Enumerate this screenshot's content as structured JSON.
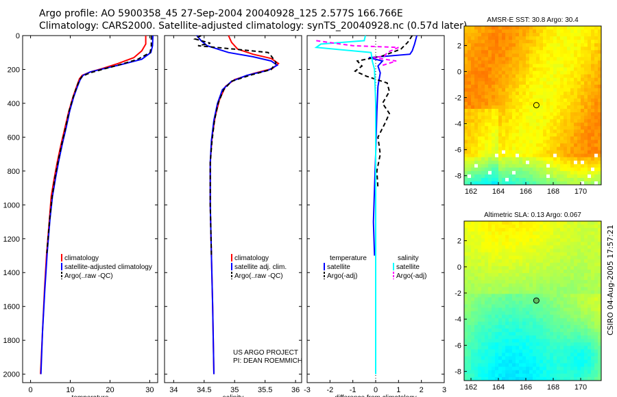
{
  "header": {
    "title_line1": "Argo profile: AO 5900358_45 27-Sep-2004 20040928_125 2.577S 166.766E",
    "title_line2": "Climatology: CARS2000. Satellite-adjusted climatology: synTS_20040928.nc (0.57d later)"
  },
  "side_label": "CSIRO 04-Aug-2005 17:57:21",
  "colors": {
    "red": "#ff0000",
    "blue": "#0000ff",
    "black": "#000000",
    "cyan": "#00ffff",
    "magenta": "#ff00ff"
  },
  "chart_data": [
    {
      "id": "temp",
      "type": "line",
      "xlabel": "temperature",
      "ylabel": "",
      "xlim": [
        -2,
        32
      ],
      "ylim": [
        2050,
        0
      ],
      "xticks": [
        0,
        10,
        20,
        30
      ],
      "yticks": [
        0,
        200,
        400,
        600,
        800,
        1000,
        1200,
        1400,
        1600,
        1800,
        2000
      ],
      "legend": [
        "climatology",
        "satellite-adjusted climatology",
        "Argo(..raw -QC)"
      ],
      "series": [
        {
          "name": "climatology",
          "color": "red",
          "dash": "",
          "points": [
            [
              29,
              0
            ],
            [
              29,
              50
            ],
            [
              28,
              90
            ],
            [
              26,
              130
            ],
            [
              22,
              165
            ],
            [
              18,
              195
            ],
            [
              15,
              215
            ],
            [
              13,
              235
            ],
            [
              12.3,
              255
            ],
            [
              11.6,
              300
            ],
            [
              10.7,
              360
            ],
            [
              9.6,
              450
            ],
            [
              8.6,
              550
            ],
            [
              7.6,
              650
            ],
            [
              6.7,
              750
            ],
            [
              5.9,
              850
            ],
            [
              5.2,
              950
            ],
            [
              4.7,
              1100
            ],
            [
              4,
              1300
            ],
            [
              3.5,
              1500
            ],
            [
              3,
              1750
            ],
            [
              2.5,
              2000
            ]
          ]
        },
        {
          "name": "satellite-adjusted climatology",
          "color": "blue",
          "dash": "",
          "points": [
            [
              30.8,
              0
            ],
            [
              30.7,
              60
            ],
            [
              30.3,
              100
            ],
            [
              28,
              140
            ],
            [
              23,
              170
            ],
            [
              18.5,
              195
            ],
            [
              15,
              215
            ],
            [
              13.2,
              235
            ],
            [
              12.5,
              260
            ],
            [
              11.8,
              300
            ],
            [
              10.9,
              360
            ],
            [
              9.9,
              440
            ],
            [
              9,
              540
            ],
            [
              8,
              640
            ],
            [
              7.1,
              740
            ],
            [
              6.3,
              840
            ],
            [
              5.5,
              950
            ],
            [
              4.9,
              1080
            ],
            [
              4.2,
              1280
            ],
            [
              3.6,
              1500
            ],
            [
              3,
              1750
            ],
            [
              2.6,
              2000
            ]
          ]
        },
        {
          "name": "Argo(..raw -QC)",
          "color": "black",
          "dash": "6,4",
          "points": [
            [
              30.4,
              0
            ],
            [
              30.4,
              60
            ],
            [
              30.1,
              100
            ],
            [
              27,
              140
            ],
            [
              22,
              175
            ],
            [
              18,
              200
            ],
            [
              15,
              220
            ],
            [
              13,
              240
            ],
            [
              12.3,
              262
            ],
            [
              11.6,
              305
            ],
            [
              10.7,
              365
            ],
            [
              9.7,
              445
            ],
            [
              8.8,
              545
            ],
            [
              7.8,
              645
            ],
            [
              6.9,
              745
            ],
            [
              6.1,
              845
            ],
            [
              5.4,
              955
            ],
            [
              4.8,
              1085
            ],
            [
              4.1,
              1285
            ]
          ]
        }
      ]
    },
    {
      "id": "sal",
      "type": "line",
      "xlabel": "salinity",
      "ylabel": "",
      "xlim": [
        33.85,
        36.1
      ],
      "ylim": [
        2050,
        0
      ],
      "xticks": [
        34,
        34.5,
        35,
        35.5,
        36
      ],
      "yticks": [
        0,
        200,
        400,
        600,
        800,
        1000,
        1200,
        1400,
        1600,
        1800,
        2000
      ],
      "legend": [
        "climatology",
        "satellite adj. clim.",
        "Argo(..raw -QC)"
      ],
      "annotation": [
        "US ARGO PROJECT",
        "PI: DEAN ROEMMICH"
      ],
      "series": [
        {
          "name": "climatology",
          "color": "red",
          "dash": "",
          "points": [
            [
              34.9,
              0
            ],
            [
              34.95,
              40
            ],
            [
              35.05,
              80
            ],
            [
              35.3,
              110
            ],
            [
              35.6,
              135
            ],
            [
              35.72,
              165
            ],
            [
              35.62,
              195
            ],
            [
              35.3,
              225
            ],
            [
              35.0,
              260
            ],
            [
              34.85,
              300
            ],
            [
              34.75,
              380
            ],
            [
              34.68,
              480
            ],
            [
              34.63,
              600
            ],
            [
              34.6,
              750
            ],
            [
              34.6,
              1000
            ],
            [
              34.62,
              1300
            ],
            [
              34.64,
              1600
            ],
            [
              34.66,
              2000
            ]
          ]
        },
        {
          "name": "satellite adj. clim.",
          "color": "blue",
          "dash": "",
          "points": [
            [
              34.38,
              0
            ],
            [
              34.45,
              30
            ],
            [
              34.55,
              60
            ],
            [
              34.9,
              100
            ],
            [
              35.3,
              125
            ],
            [
              35.6,
              150
            ],
            [
              35.7,
              175
            ],
            [
              35.55,
              205
            ],
            [
              35.2,
              235
            ],
            [
              34.95,
              270
            ],
            [
              34.8,
              320
            ],
            [
              34.72,
              400
            ],
            [
              34.66,
              500
            ],
            [
              34.62,
              620
            ],
            [
              34.6,
              750
            ],
            [
              34.6,
              1000
            ],
            [
              34.62,
              1300
            ],
            [
              34.64,
              1600
            ],
            [
              34.66,
              2000
            ]
          ]
        },
        {
          "name": "Argo(..raw -QC)",
          "color": "black",
          "dash": "6,4",
          "points": [
            [
              34.45,
              0
            ],
            [
              34.35,
              20
            ],
            [
              34.6,
              45
            ],
            [
              34.4,
              60
            ],
            [
              35.0,
              80
            ],
            [
              35.55,
              100
            ],
            [
              35.6,
              120
            ],
            [
              35.68,
              160
            ],
            [
              35.6,
              200
            ],
            [
              35.25,
              235
            ],
            [
              34.95,
              270
            ],
            [
              34.82,
              320
            ],
            [
              34.73,
              400
            ],
            [
              34.67,
              500
            ],
            [
              34.63,
              620
            ],
            [
              34.6,
              750
            ],
            [
              34.6,
              1000
            ],
            [
              34.62,
              1300
            ]
          ]
        }
      ]
    },
    {
      "id": "diff",
      "type": "line",
      "xlabel": "difference from climatology",
      "ylabel": "",
      "xlim": [
        -3,
        3
      ],
      "ylim": [
        2050,
        0
      ],
      "xticks": [
        -3,
        -2,
        -1,
        0,
        1,
        2,
        3
      ],
      "yticks": [
        0,
        200,
        400,
        600,
        800,
        1000,
        1200,
        1400,
        1600,
        1800,
        2000
      ],
      "legend_left": [
        "temperature",
        "satellite",
        "Argo(-adj)"
      ],
      "legend_right": [
        "salinity",
        "satellite",
        "Argo(-adj)"
      ],
      "series": [
        {
          "name": "temperature satellite",
          "color": "blue",
          "dash": "",
          "points": [
            [
              1.8,
              0
            ],
            [
              1.7,
              50
            ],
            [
              1.6,
              90
            ],
            [
              1.5,
              110
            ],
            [
              -0.3,
              130
            ],
            [
              0.3,
              150
            ],
            [
              0.1,
              180
            ],
            [
              0.2,
              220
            ],
            [
              0.1,
              300
            ],
            [
              0.05,
              450
            ],
            [
              0.0,
              700
            ],
            [
              -0.05,
              900
            ],
            [
              -0.1,
              1100
            ],
            [
              -0.05,
              1300
            ]
          ]
        },
        {
          "name": "temperature Argo(-adj)",
          "color": "black",
          "dash": "6,4",
          "points": [
            [
              1.6,
              0
            ],
            [
              1.4,
              40
            ],
            [
              1.1,
              80
            ],
            [
              0.3,
              120
            ],
            [
              -0.8,
              150
            ],
            [
              -0.6,
              180
            ],
            [
              -0.9,
              210
            ],
            [
              -0.4,
              240
            ],
            [
              0.5,
              280
            ],
            [
              0.6,
              330
            ],
            [
              0.3,
              400
            ],
            [
              0.6,
              460
            ],
            [
              0.4,
              520
            ],
            [
              0.1,
              600
            ],
            [
              0.2,
              700
            ],
            [
              0.05,
              800
            ],
            [
              0.1,
              900
            ]
          ]
        },
        {
          "name": "salinity satellite",
          "color": "cyan",
          "dash": "",
          "points": [
            [
              -0.45,
              0
            ],
            [
              -0.5,
              30
            ],
            [
              -2.4,
              50
            ],
            [
              -2.6,
              70
            ],
            [
              -0.2,
              100
            ],
            [
              -0.15,
              150
            ],
            [
              -0.05,
              200
            ],
            [
              0.0,
              400
            ],
            [
              0.0,
              800
            ],
            [
              0.0,
              2000
            ]
          ]
        },
        {
          "name": "salinity Argo(-adj)",
          "color": "magenta",
          "dash": "6,4",
          "points": [
            [
              -2.6,
              30
            ],
            [
              -1.0,
              60
            ],
            [
              1.0,
              70
            ],
            [
              0.5,
              100
            ],
            [
              0.4,
              120
            ],
            [
              -0.1,
              130
            ],
            [
              0.9,
              150
            ],
            [
              0.2,
              180
            ]
          ]
        }
      ]
    }
  ],
  "maps": [
    {
      "id": "sst",
      "title": "AMSR-E SST: 30.8 Argo: 30.4",
      "xticks": [
        162,
        164,
        166,
        168,
        170
      ],
      "yticks": [
        2,
        0,
        -2,
        -4,
        -6,
        -8
      ],
      "xlim": [
        161.5,
        171.5
      ],
      "ylim": [
        -8.7,
        3.5
      ],
      "float_position": [
        166.77,
        -2.58
      ],
      "colormap": "jet"
    },
    {
      "id": "sla",
      "title": "Altimetric SLA: 0.13 Argo: 0.067",
      "xticks": [
        162,
        164,
        166,
        168,
        170
      ],
      "yticks": [
        2,
        0,
        -2,
        -4,
        -6,
        -8
      ],
      "xlim": [
        161.5,
        171.5
      ],
      "ylim": [
        -8.7,
        3.5
      ],
      "float_position": [
        166.77,
        -2.58
      ],
      "colormap": "jet"
    }
  ]
}
